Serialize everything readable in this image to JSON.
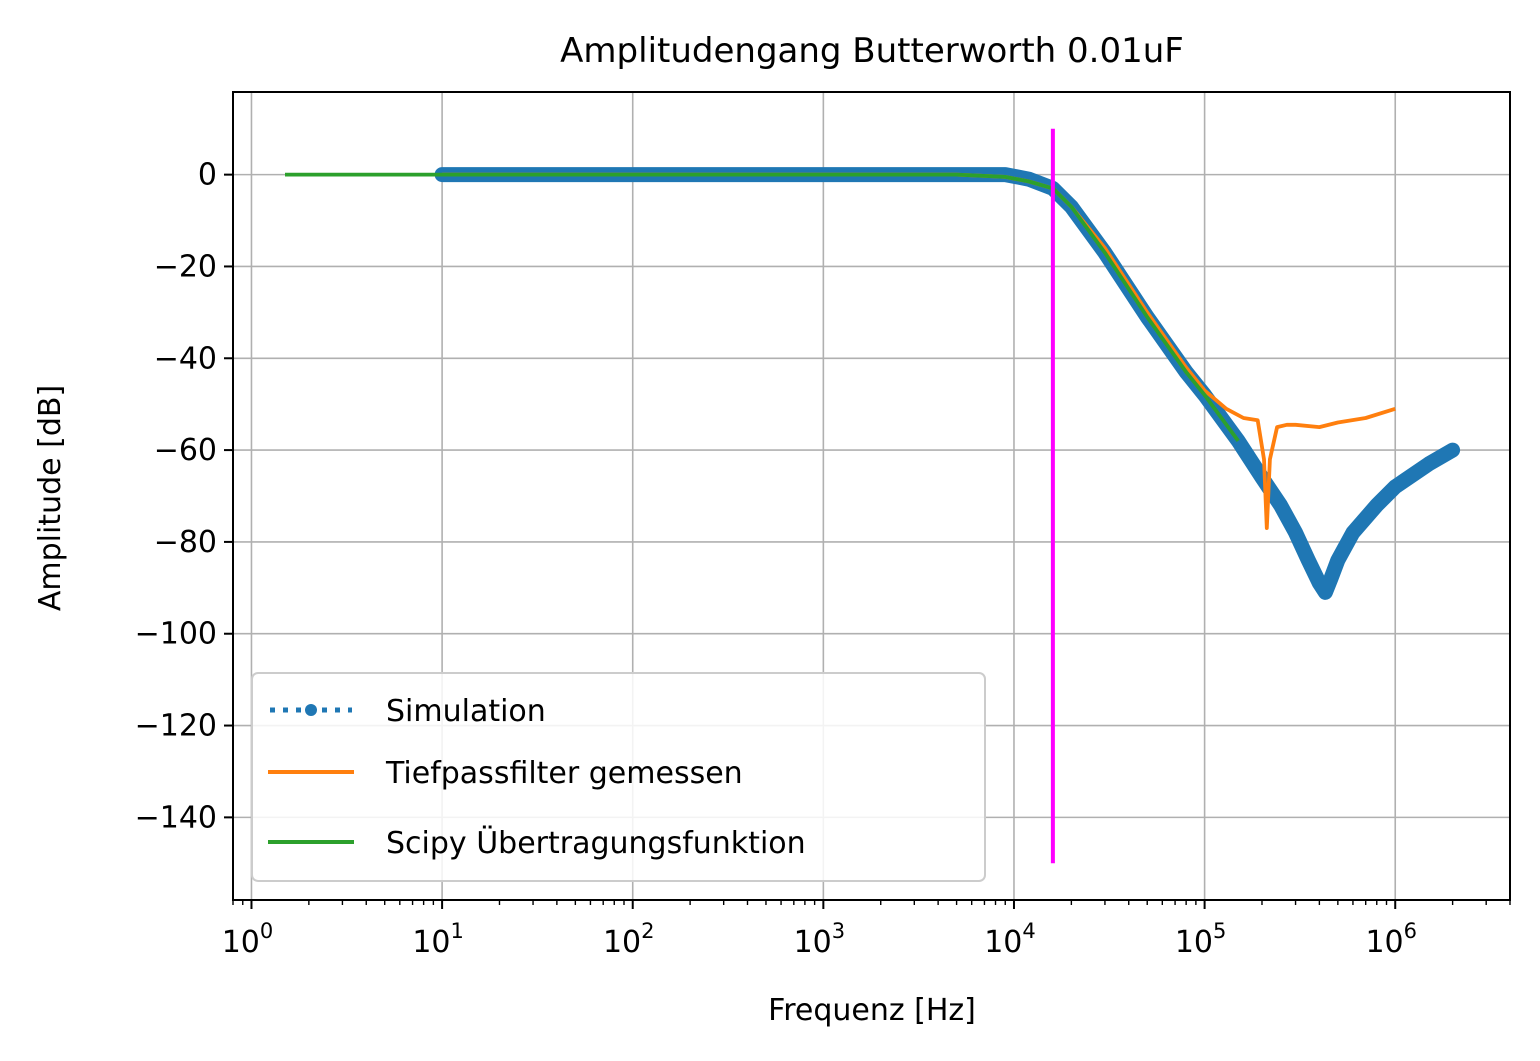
{
  "chart_data": {
    "type": "line",
    "title": "Amplitudengang Butterworth 0.01uF",
    "xlabel": "Frequenz [Hz]",
    "ylabel": "Amplitude [dB]",
    "xscale": "log",
    "xlim": [
      0.8,
      4000000
    ],
    "ylim": [
      -158,
      18
    ],
    "grid": true,
    "legend_position": "lower-left",
    "x_ticks": [
      {
        "value": 1,
        "base": "10",
        "exp": "0"
      },
      {
        "value": 10,
        "base": "10",
        "exp": "1"
      },
      {
        "value": 100,
        "base": "10",
        "exp": "2"
      },
      {
        "value": 1000,
        "base": "10",
        "exp": "3"
      },
      {
        "value": 10000,
        "base": "10",
        "exp": "4"
      },
      {
        "value": 100000,
        "base": "10",
        "exp": "5"
      },
      {
        "value": 1000000,
        "base": "10",
        "exp": "6"
      }
    ],
    "y_ticks": [
      {
        "value": 0,
        "label": "0"
      },
      {
        "value": -20,
        "label": "−20"
      },
      {
        "value": -40,
        "label": "−40"
      },
      {
        "value": -60,
        "label": "−60"
      },
      {
        "value": -80,
        "label": "−80"
      },
      {
        "value": -100,
        "label": "−100"
      },
      {
        "value": -120,
        "label": "−120"
      },
      {
        "value": -140,
        "label": "−140"
      }
    ],
    "series": [
      {
        "name": "Simulation",
        "color": "#1f77b4",
        "style": "dotted-marker",
        "x": [
          10,
          100,
          1000,
          5000,
          9000,
          12000,
          16000,
          20000,
          30000,
          50000,
          80000,
          100000,
          150000,
          200000,
          250000,
          300000,
          350000,
          400000,
          430000,
          460000,
          500000,
          600000,
          800000,
          1000000,
          1500000,
          2000000
        ],
        "y": [
          0,
          0,
          0,
          0,
          0,
          -1,
          -3,
          -7,
          -17,
          -31,
          -43,
          -48,
          -58,
          -66,
          -72,
          -78,
          -84,
          -89,
          -91,
          -88,
          -84,
          -78,
          -72,
          -68,
          -63,
          -60
        ]
      },
      {
        "name": "Tiefpassfilter gemessen",
        "color": "#ff7f0e",
        "style": "solid",
        "x": [
          10,
          100,
          1000,
          5000,
          9000,
          12000,
          16000,
          20000,
          30000,
          50000,
          80000,
          100000,
          130000,
          160000,
          190000,
          205000,
          212000,
          220000,
          240000,
          270000,
          300000,
          400000,
          500000,
          700000,
          1000000
        ],
        "y": [
          0,
          0,
          0,
          0,
          -0.5,
          -1.5,
          -3,
          -7,
          -16,
          -30,
          -42,
          -47,
          -51,
          -53,
          -53.5,
          -62,
          -77,
          -62,
          -55,
          -54.5,
          -54.5,
          -55,
          -54,
          -53,
          -51
        ]
      },
      {
        "name": "Scipy Übertragungsfunktion",
        "color": "#2ca02c",
        "style": "solid",
        "x": [
          1.5,
          10,
          100,
          1000,
          5000,
          9000,
          12000,
          16000,
          20000,
          30000,
          50000,
          80000,
          100000,
          150000
        ],
        "y": [
          0,
          0,
          0,
          0,
          0,
          -0.5,
          -1.5,
          -3,
          -7,
          -17,
          -31,
          -43,
          -48,
          -58
        ]
      }
    ],
    "vline": {
      "x": 16000,
      "y_range": [
        -150,
        10
      ],
      "color": "#ff00ff"
    }
  }
}
